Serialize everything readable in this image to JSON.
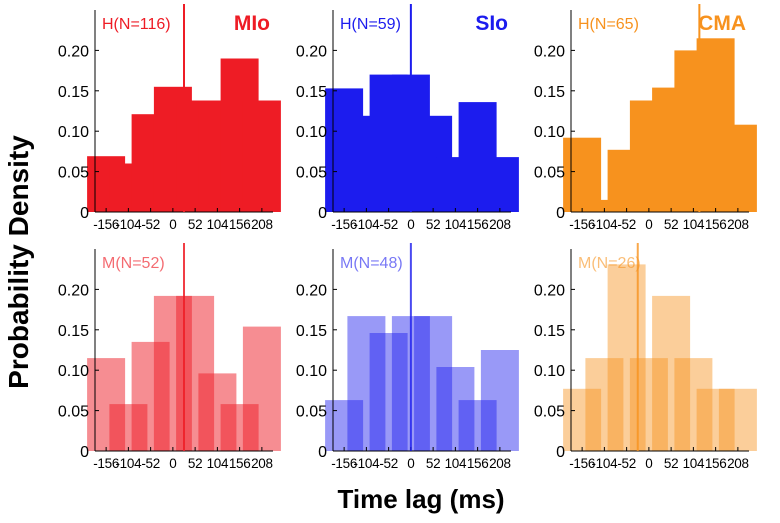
{
  "figure": {
    "ylabel": "Probability Density",
    "xlabel": "Time lag (ms)"
  },
  "chart_data": [
    {
      "type": "bar",
      "region": "MIo",
      "group": "H",
      "label": "H(N=116)",
      "x": [
        -156,
        -104,
        -52,
        0,
        52,
        104,
        156,
        208
      ],
      "values": [
        0.069,
        0.06,
        0.121,
        0.155,
        0.138,
        0.138,
        0.19,
        0.138
      ],
      "marker": 26,
      "xlim": [
        -182,
        234
      ],
      "ylim": [
        0,
        0.25
      ],
      "xticks": [
        "-156",
        "-104",
        "-52",
        "0",
        "52",
        "104",
        "156",
        "208"
      ],
      "yticks": [
        "0",
        "0.05",
        "0.10",
        "0.15",
        "0.20"
      ],
      "color": "#ee1c25",
      "opacity": 1
    },
    {
      "type": "bar",
      "region": "SIo",
      "group": "H",
      "label": "H(N=59)",
      "x": [
        -156,
        -104,
        -52,
        0,
        52,
        104,
        156,
        208
      ],
      "values": [
        0.153,
        0.119,
        0.17,
        0.17,
        0.119,
        0.068,
        0.136,
        0.068
      ],
      "marker": 0,
      "xlim": [
        -182,
        234
      ],
      "ylim": [
        0,
        0.25
      ],
      "xticks": [
        "-156",
        "-104",
        "-52",
        "0",
        "52",
        "104",
        "156",
        "208"
      ],
      "yticks": [
        "0",
        "0.05",
        "0.10",
        "0.15",
        "0.20"
      ],
      "color": "#1c1cee",
      "opacity": 1
    },
    {
      "type": "bar",
      "region": "CMA",
      "group": "H",
      "label": "H(N=65)",
      "x": [
        -156,
        -104,
        -52,
        0,
        52,
        104,
        156,
        208
      ],
      "values": [
        0.092,
        0.015,
        0.077,
        0.138,
        0.154,
        0.2,
        0.215,
        0.108
      ],
      "marker": 118,
      "xlim": [
        -182,
        234
      ],
      "ylim": [
        0,
        0.25
      ],
      "xticks": [
        "-156",
        "-104",
        "-52",
        "0",
        "52",
        "104",
        "156",
        "208"
      ],
      "yticks": [
        "0",
        "0.05",
        "0.10",
        "0.15",
        "0.20"
      ],
      "color": "#f7921e",
      "opacity": 1
    },
    {
      "type": "bar",
      "region": "MIo",
      "group": "M",
      "label": "M(N=52)",
      "x": [
        -156,
        -104,
        -52,
        0,
        52,
        104,
        156,
        208
      ],
      "values": [
        0.115,
        0.058,
        0.135,
        0.192,
        0.192,
        0.096,
        0.058,
        0.154
      ],
      "marker": 26,
      "xlim": [
        -182,
        234
      ],
      "ylim": [
        0,
        0.25
      ],
      "xticks": [
        "-156",
        "-104",
        "-52",
        "0",
        "52",
        "104",
        "156",
        "208"
      ],
      "yticks": [
        "0",
        "0.05",
        "0.10",
        "0.15",
        "0.20"
      ],
      "color": "#ee1c25",
      "opacity": 0.5
    },
    {
      "type": "bar",
      "region": "SIo",
      "group": "M",
      "label": "M(N=48)",
      "x": [
        -156,
        -104,
        -52,
        0,
        52,
        104,
        156,
        208
      ],
      "values": [
        0.063,
        0.167,
        0.146,
        0.167,
        0.167,
        0.104,
        0.063,
        0.125
      ],
      "marker": 0,
      "xlim": [
        -182,
        234
      ],
      "ylim": [
        0,
        0.25
      ],
      "xticks": [
        "-156",
        "-104",
        "-52",
        "0",
        "52",
        "104",
        "156",
        "208"
      ],
      "yticks": [
        "0",
        "0.05",
        "0.10",
        "0.15",
        "0.20"
      ],
      "color": "#1c1cee",
      "opacity": 0.45
    },
    {
      "type": "bar",
      "region": "CMA",
      "group": "M",
      "label": "M(N=26)",
      "x": [
        -156,
        -104,
        -52,
        0,
        52,
        104,
        156,
        208
      ],
      "values": [
        0.077,
        0.115,
        0.231,
        0.115,
        0.192,
        0.115,
        0.077,
        0.077
      ],
      "marker": -26,
      "xlim": [
        -182,
        234
      ],
      "ylim": [
        0,
        0.25
      ],
      "xticks": [
        "-156",
        "-104",
        "-52",
        "0",
        "52",
        "104",
        "156",
        "208"
      ],
      "yticks": [
        "0",
        "0.05",
        "0.10",
        "0.15",
        "0.20"
      ],
      "color": "#f7921e",
      "opacity": 0.45
    }
  ]
}
